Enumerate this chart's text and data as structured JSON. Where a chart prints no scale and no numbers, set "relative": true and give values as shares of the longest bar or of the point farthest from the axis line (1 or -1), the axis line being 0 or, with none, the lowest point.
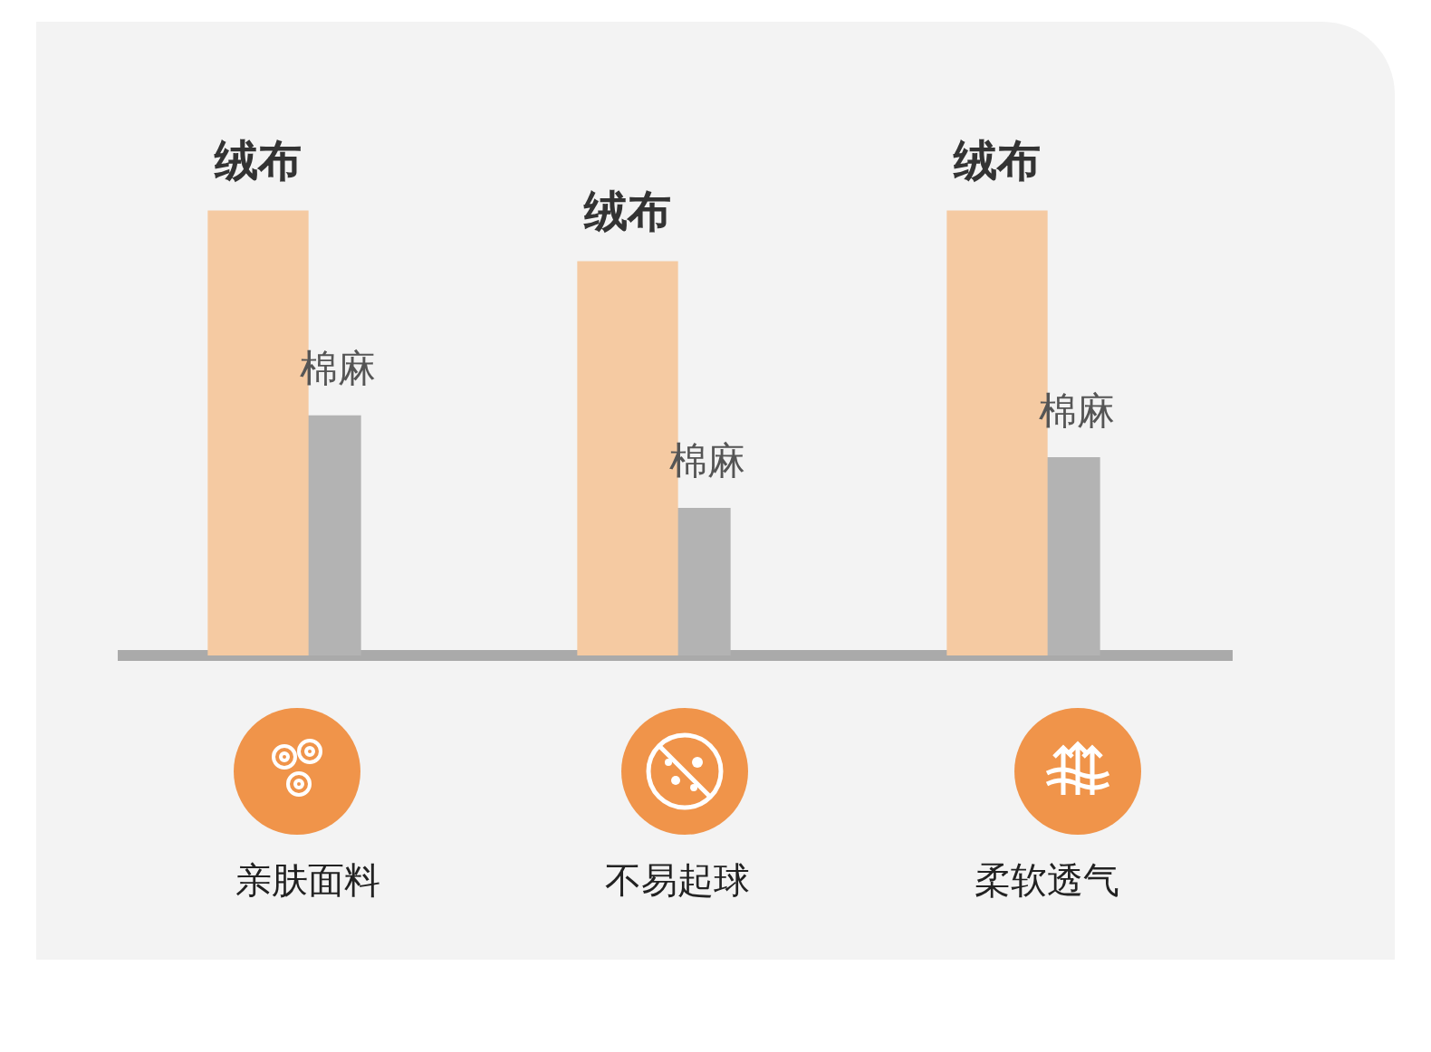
{
  "chart_data": {
    "type": "bar",
    "relative": true,
    "categories": [
      "亲肤面料",
      "不易起球",
      "柔软透气"
    ],
    "series": [
      {
        "name": "绒布",
        "color": "#f5caa2",
        "values": [
          1,
          0.886,
          1
        ]
      },
      {
        "name": "棉麻",
        "color": "#b3b3b3",
        "values": [
          0.539,
          0.331,
          0.445
        ]
      }
    ],
    "legend": false,
    "grid": false
  }
}
